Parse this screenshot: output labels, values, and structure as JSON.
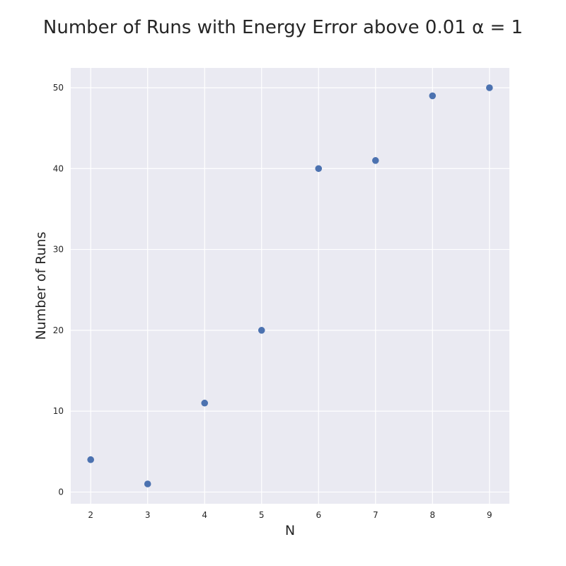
{
  "chart_data": {
    "type": "scatter",
    "title": "Number of Runs with Energy Error above 0.01 α = 1",
    "xlabel": "N",
    "ylabel": "Number of Runs",
    "x": [
      2,
      3,
      4,
      5,
      6,
      7,
      8,
      9
    ],
    "y": [
      4,
      1,
      11,
      20,
      40,
      41,
      49,
      50
    ],
    "xticks": [
      2,
      3,
      4,
      5,
      6,
      7,
      8,
      9
    ],
    "yticks": [
      0,
      10,
      20,
      30,
      40,
      50
    ],
    "xlim": [
      1.65,
      9.35
    ],
    "ylim": [
      -1.45,
      52.45
    ],
    "grid": true,
    "colors": {
      "marker": "#4c72b0",
      "background": "#eaeaf2",
      "grid": "#ffffff"
    }
  }
}
